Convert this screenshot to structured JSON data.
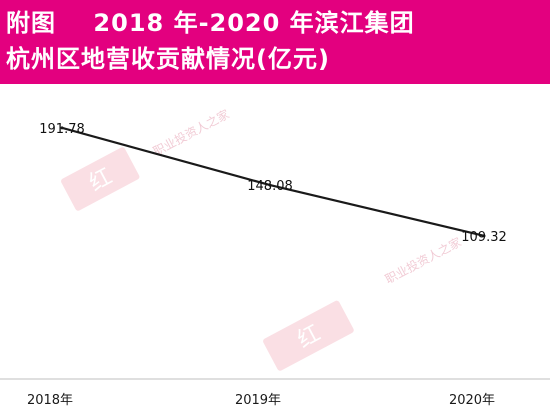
{
  "header": {
    "line1": "附图    2018 年-2020 年滨江集团",
    "line2": "杭州区地营收贡献情况(亿元)",
    "bg_color": "#e3007f"
  },
  "watermark": {
    "brand": "职业投资人之家",
    "logo_text": "红"
  },
  "chart_data": {
    "type": "line",
    "title": "附图    2018 年-2020 年滨江集团杭州区地营收贡献情况(亿元)",
    "categories": [
      "2018年",
      "2019年",
      "2020年"
    ],
    "series": [
      {
        "values": [
          191.78,
          148.08,
          109.32
        ],
        "labels": [
          "191.78",
          "148.08",
          "109.32"
        ]
      }
    ],
    "ylim": [
      0,
      210
    ],
    "grid": false,
    "line_color": "#1a1a1a"
  }
}
